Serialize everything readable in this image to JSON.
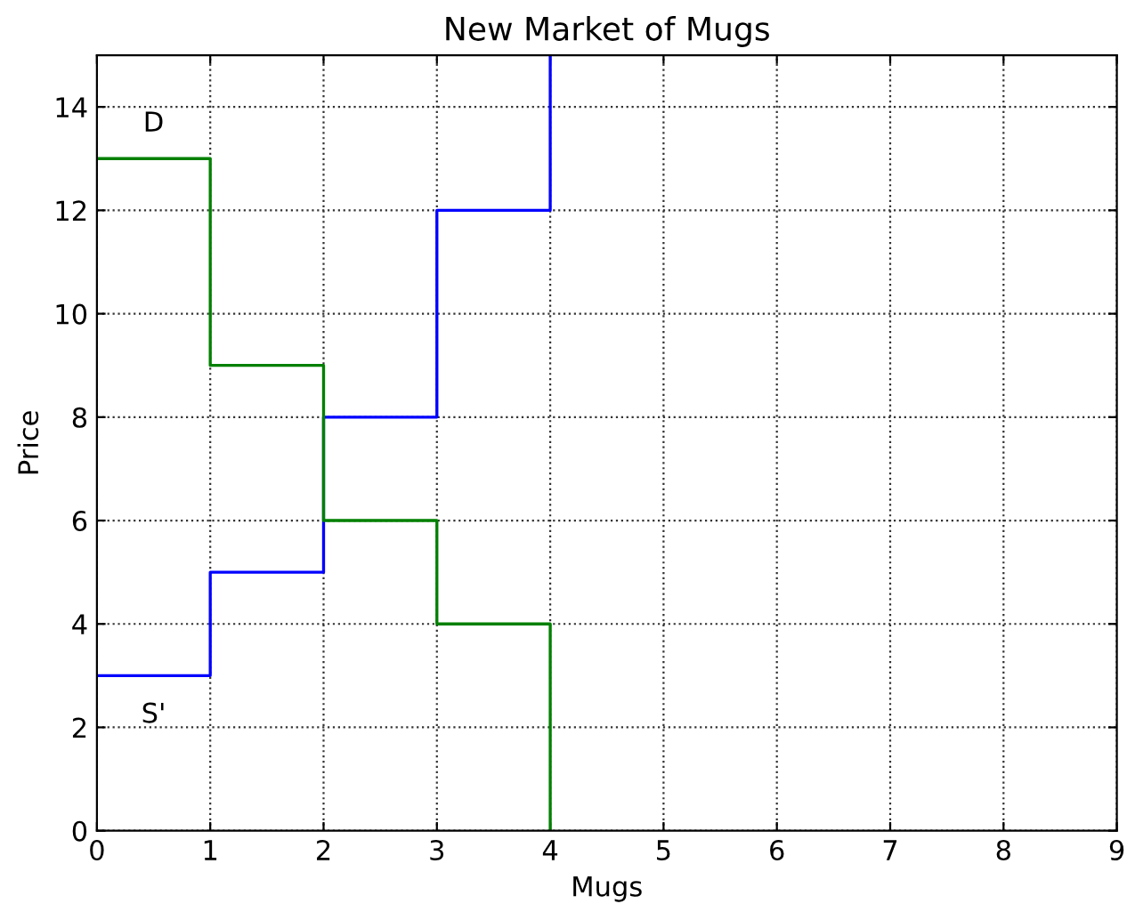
{
  "chart_data": {
    "type": "step",
    "title": "New Market of Mugs",
    "xlabel": "Mugs",
    "ylabel": "Price",
    "series": [
      {
        "name": "S'",
        "color": "#0000ff",
        "x": [
          0,
          1,
          2,
          3,
          4
        ],
        "values": [
          3,
          5,
          8,
          12,
          15
        ]
      },
      {
        "name": "D",
        "color": "#008000",
        "x": [
          0,
          1,
          2,
          3,
          4
        ],
        "values": [
          13,
          9,
          6,
          4,
          0
        ]
      }
    ],
    "xlim": [
      0,
      9
    ],
    "ylim": [
      0,
      15
    ],
    "xticks": [
      0,
      1,
      2,
      3,
      4,
      5,
      6,
      7,
      8,
      9
    ],
    "yticks": [
      0,
      2,
      4,
      6,
      8,
      10,
      12,
      14
    ],
    "grid": true,
    "line_style": "solid"
  }
}
